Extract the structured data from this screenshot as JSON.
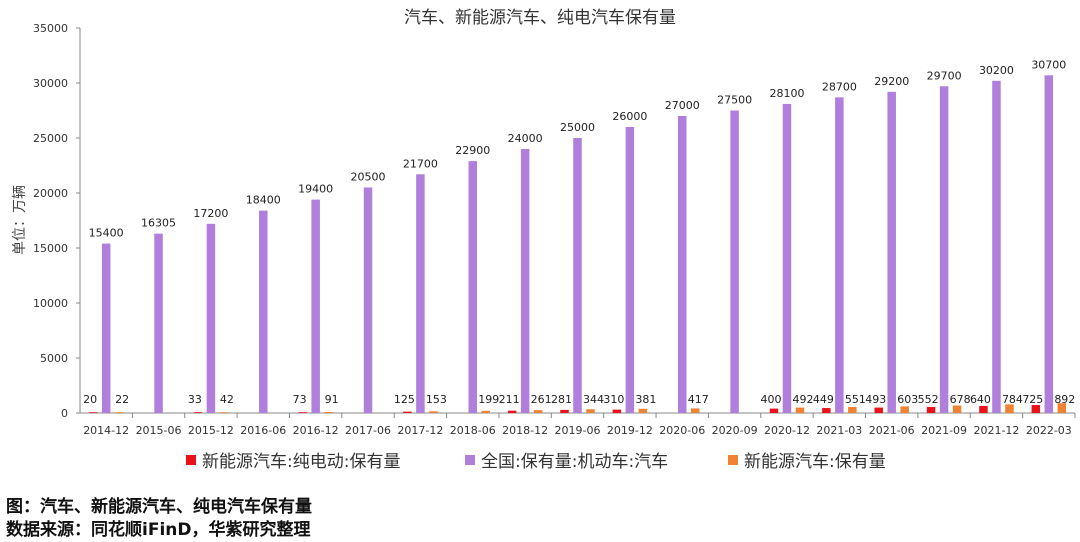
{
  "chart_data": {
    "type": "bar",
    "title": "汽车、新能源汽车、纯电汽车保有量",
    "ylabel": "单位：万辆",
    "ylim": [
      0,
      35000
    ],
    "yticks": [
      "0",
      "5000",
      "10000",
      "15000",
      "20000",
      "25000",
      "30000",
      "35000"
    ],
    "categories": [
      "2014-12",
      "2015-06",
      "2015-12",
      "2016-06",
      "2016-12",
      "2017-06",
      "2017-12",
      "2018-06",
      "2018-12",
      "2019-06",
      "2019-12",
      "2020-06",
      "2020-09",
      "2020-12",
      "2021-03",
      "2021-06",
      "2021-09",
      "2021-12",
      "2022-03"
    ],
    "grid": false,
    "legend_position": "bottom",
    "series": [
      {
        "name": "新能源汽车:纯电动:保有量",
        "color": "#e8131b",
        "values": [
          20,
          null,
          33,
          null,
          73,
          null,
          125,
          null,
          211,
          281,
          310,
          null,
          null,
          400,
          449,
          493,
          552,
          640,
          725
        ]
      },
      {
        "name": "全国:保有量:机动车:汽车",
        "color": "#b07fdc",
        "values": [
          15400,
          16305,
          17200,
          18400,
          19400,
          20500,
          21700,
          22900,
          24000,
          25000,
          26000,
          27000,
          27500,
          28100,
          28700,
          29200,
          29700,
          30200,
          30700
        ]
      },
      {
        "name": "新能源汽车:保有量",
        "color": "#ef8333",
        "values": [
          22,
          null,
          42,
          null,
          91,
          null,
          153,
          199,
          261,
          344,
          381,
          417,
          null,
          492,
          551,
          603,
          678,
          784,
          892
        ]
      }
    ]
  },
  "captions": {
    "figure": "图：汽车、新能源汽车、纯电汽车保有量",
    "source": "数据来源：同花顺iFinD，华紫研究整理"
  }
}
